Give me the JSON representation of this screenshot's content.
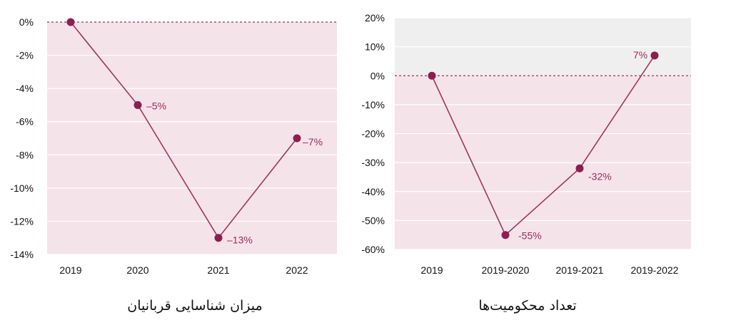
{
  "charts": {
    "left": {
      "caption": "میزان شناسایی قربانیان"
    },
    "right": {
      "caption": "تعداد محکومیت‌ها"
    }
  },
  "colors": {
    "line": "#a0355f",
    "marker": "#8e1d50",
    "label": "#9a2a5c",
    "negative_fill": "#f5e3ea",
    "positive_fill": "#efefef",
    "zero_line": "#a03060",
    "grid": "#ffffff",
    "tick_text": "#111111"
  },
  "chart_data": [
    {
      "type": "line",
      "title": "میزان شناسایی قربانیان",
      "categories": [
        "2019",
        "2020",
        "2021",
        "2022"
      ],
      "series": [
        {
          "values": [
            0,
            -5,
            -13,
            -7
          ]
        }
      ],
      "data_labels": [
        "",
        "–5%",
        "–13%",
        "–7%"
      ],
      "yticks": [
        "0%",
        "-2%",
        "-4%",
        "-6%",
        "-8%",
        "-10%",
        "-12%",
        "-14%"
      ],
      "ylim": [
        -14,
        0
      ],
      "grid": true,
      "zero_line": "dashed"
    },
    {
      "type": "line",
      "title": "تعداد محکومیت‌ها",
      "categories": [
        "2019",
        "2019-2020",
        "2019-2021",
        "2019-2022"
      ],
      "series": [
        {
          "values": [
            0,
            -55,
            -32,
            7
          ]
        }
      ],
      "data_labels": [
        "",
        "-55%",
        "-32%",
        "7%"
      ],
      "yticks": [
        "20%",
        "10%",
        "0%",
        "-10%",
        "-20%",
        "-30%",
        "-40%",
        "-50%",
        "-60%"
      ],
      "ylim": [
        -60,
        20
      ],
      "grid": true,
      "zero_line": "dashed"
    }
  ]
}
